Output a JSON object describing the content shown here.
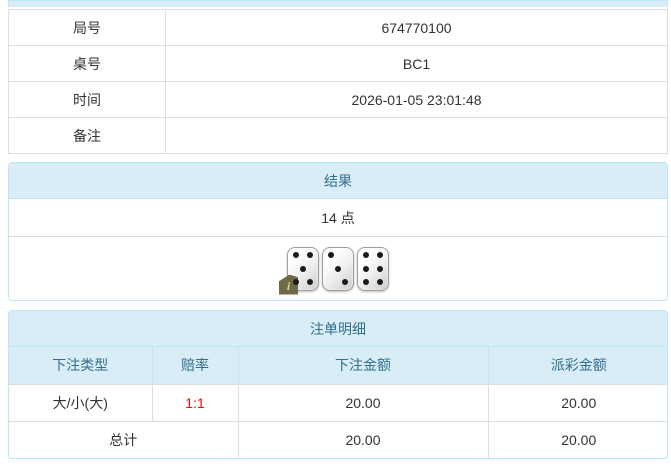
{
  "info_table": {
    "rows": [
      {
        "label": "局号",
        "value": "674770100"
      },
      {
        "label": "桌号",
        "value": "BC1"
      },
      {
        "label": "时间",
        "value": "2026-01-05 23:01:48"
      },
      {
        "label": "备注",
        "value": ""
      }
    ]
  },
  "result": {
    "title": "结果",
    "points": "14 点",
    "dice": [
      5,
      3,
      6
    ],
    "badge_glyph": "i"
  },
  "bets": {
    "title": "注单明细",
    "columns": [
      "下注类型",
      "赔率",
      "下注金额",
      "派彩金额"
    ],
    "rows": [
      {
        "bet_type": "大/小(大)",
        "odds": "1:1",
        "bet_amount": "20.00",
        "payout_amount": "20.00"
      }
    ],
    "total": {
      "label": "总计",
      "bet_amount": "20.00",
      "payout_amount": "20.00"
    }
  },
  "colors": {
    "heading_bg": "#d9edf7",
    "heading_text": "#31708f",
    "panel_border": "#bce8f1",
    "table_border": "#dddddd",
    "odds_red": "#ff0000",
    "body_text": "#333333"
  }
}
